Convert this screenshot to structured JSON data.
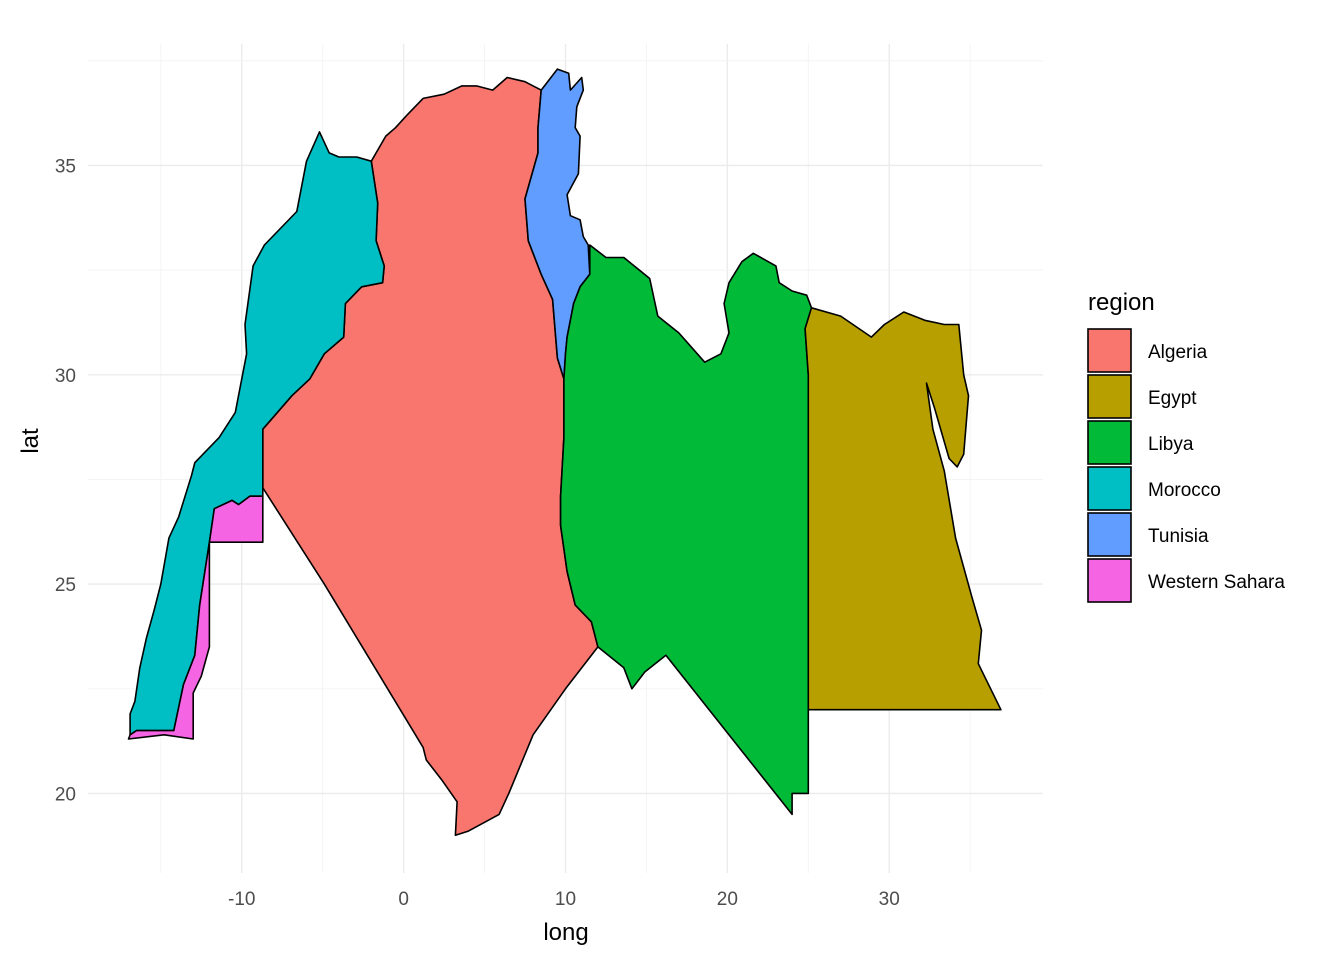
{
  "chart_data": {
    "type": "map",
    "xlabel": "long",
    "ylabel": "lat",
    "xlim": [
      -19.5,
      39.5
    ],
    "ylim": [
      18.1,
      37.9
    ],
    "x_ticks": [
      -10,
      0,
      10,
      20,
      30
    ],
    "y_ticks": [
      20,
      25,
      30,
      35
    ],
    "grid": true,
    "legend": {
      "title": "region",
      "position": "right"
    },
    "regions": [
      {
        "name": "Algeria",
        "color": "#F8766D",
        "polygon": [
          [
            -2.0,
            35.1
          ],
          [
            -1.1,
            35.7
          ],
          [
            -0.5,
            35.9
          ],
          [
            0.2,
            36.2
          ],
          [
            1.2,
            36.6
          ],
          [
            2.5,
            36.7
          ],
          [
            3.6,
            36.9
          ],
          [
            4.5,
            36.9
          ],
          [
            5.5,
            36.8
          ],
          [
            6.4,
            37.1
          ],
          [
            7.5,
            37.0
          ],
          [
            8.0,
            36.9
          ],
          [
            8.5,
            36.8
          ],
          [
            8.3,
            35.9
          ],
          [
            8.3,
            35.3
          ],
          [
            7.5,
            34.2
          ],
          [
            7.7,
            33.2
          ],
          [
            8.5,
            32.4
          ],
          [
            9.2,
            31.8
          ],
          [
            9.5,
            30.4
          ],
          [
            9.9,
            29.9
          ],
          [
            9.9,
            28.5
          ],
          [
            9.7,
            27.1
          ],
          [
            9.7,
            26.4
          ],
          [
            10.1,
            25.3
          ],
          [
            10.6,
            24.5
          ],
          [
            11.6,
            24.1
          ],
          [
            12.0,
            23.5
          ],
          [
            10.0,
            22.5
          ],
          [
            8.0,
            21.4
          ],
          [
            6.5,
            20.0
          ],
          [
            5.9,
            19.5
          ],
          [
            4.0,
            19.1
          ],
          [
            3.2,
            19.0
          ],
          [
            3.3,
            19.8
          ],
          [
            2.4,
            20.3
          ],
          [
            1.4,
            20.8
          ],
          [
            1.2,
            21.1
          ],
          [
            -4.9,
            25.0
          ],
          [
            -8.7,
            27.3
          ],
          [
            -8.7,
            27.6
          ],
          [
            -8.7,
            28.7
          ],
          [
            -6.9,
            29.5
          ],
          [
            -5.8,
            29.9
          ],
          [
            -4.9,
            30.5
          ],
          [
            -3.7,
            30.9
          ],
          [
            -3.6,
            31.7
          ],
          [
            -2.6,
            32.1
          ],
          [
            -1.3,
            32.2
          ],
          [
            -1.2,
            32.6
          ],
          [
            -1.7,
            33.2
          ],
          [
            -1.6,
            34.1
          ],
          [
            -1.8,
            34.6
          ],
          [
            -2.0,
            35.1
          ]
        ]
      },
      {
        "name": "Tunisia",
        "color": "#619CFF",
        "polygon": [
          [
            8.5,
            36.8
          ],
          [
            9.5,
            37.3
          ],
          [
            10.2,
            37.2
          ],
          [
            10.3,
            36.8
          ],
          [
            11.0,
            37.1
          ],
          [
            11.1,
            36.8
          ],
          [
            10.7,
            36.4
          ],
          [
            10.6,
            35.9
          ],
          [
            10.9,
            35.7
          ],
          [
            10.8,
            34.8
          ],
          [
            10.1,
            34.3
          ],
          [
            10.3,
            33.8
          ],
          [
            10.9,
            33.7
          ],
          [
            11.1,
            33.3
          ],
          [
            11.4,
            33.1
          ],
          [
            11.5,
            32.4
          ],
          [
            10.9,
            32.1
          ],
          [
            10.5,
            31.7
          ],
          [
            10.1,
            30.9
          ],
          [
            10.0,
            30.5
          ],
          [
            9.9,
            29.9
          ],
          [
            9.5,
            30.4
          ],
          [
            9.2,
            31.8
          ],
          [
            8.5,
            32.4
          ],
          [
            7.7,
            33.2
          ],
          [
            7.5,
            34.2
          ],
          [
            8.3,
            35.3
          ],
          [
            8.3,
            35.9
          ],
          [
            8.5,
            36.8
          ]
        ]
      },
      {
        "name": "Libya",
        "color": "#00BA38",
        "polygon": [
          [
            11.5,
            33.1
          ],
          [
            12.5,
            32.8
          ],
          [
            13.6,
            32.8
          ],
          [
            15.2,
            32.3
          ],
          [
            15.7,
            31.4
          ],
          [
            17.0,
            31.0
          ],
          [
            18.6,
            30.3
          ],
          [
            19.6,
            30.5
          ],
          [
            20.1,
            31.0
          ],
          [
            19.8,
            31.7
          ],
          [
            20.1,
            32.2
          ],
          [
            20.9,
            32.7
          ],
          [
            21.6,
            32.9
          ],
          [
            23.0,
            32.6
          ],
          [
            23.2,
            32.2
          ],
          [
            24.0,
            32.0
          ],
          [
            24.9,
            31.9
          ],
          [
            25.2,
            31.6
          ],
          [
            24.8,
            31.1
          ],
          [
            25.0,
            30.0
          ],
          [
            25.0,
            22.0
          ],
          [
            25.0,
            20.0
          ],
          [
            24.0,
            20.0
          ],
          [
            24.0,
            19.5
          ],
          [
            16.2,
            23.3
          ],
          [
            14.9,
            22.9
          ],
          [
            14.1,
            22.5
          ],
          [
            13.6,
            23.0
          ],
          [
            12.0,
            23.5
          ],
          [
            11.6,
            24.1
          ],
          [
            10.6,
            24.5
          ],
          [
            10.1,
            25.3
          ],
          [
            9.7,
            26.4
          ],
          [
            9.7,
            27.1
          ],
          [
            9.9,
            28.5
          ],
          [
            9.9,
            29.9
          ],
          [
            10.0,
            30.5
          ],
          [
            10.1,
            30.9
          ],
          [
            10.5,
            31.7
          ],
          [
            10.9,
            32.1
          ],
          [
            11.5,
            32.4
          ],
          [
            11.5,
            33.1
          ]
        ]
      },
      {
        "name": "Egypt",
        "color": "#B79F00",
        "polygon": [
          [
            25.2,
            31.6
          ],
          [
            27.0,
            31.4
          ],
          [
            28.9,
            30.9
          ],
          [
            29.7,
            31.2
          ],
          [
            30.9,
            31.5
          ],
          [
            32.2,
            31.3
          ],
          [
            33.4,
            31.2
          ],
          [
            34.3,
            31.2
          ],
          [
            34.6,
            30.0
          ],
          [
            34.9,
            29.5
          ],
          [
            34.6,
            28.1
          ],
          [
            34.2,
            27.8
          ],
          [
            33.7,
            28.0
          ],
          [
            32.8,
            29.2
          ],
          [
            32.3,
            29.8
          ],
          [
            32.7,
            28.7
          ],
          [
            33.4,
            27.7
          ],
          [
            34.1,
            26.1
          ],
          [
            35.1,
            24.7
          ],
          [
            35.7,
            23.9
          ],
          [
            35.5,
            23.1
          ],
          [
            36.9,
            22.0
          ],
          [
            31.4,
            22.0
          ],
          [
            29.1,
            22.0
          ],
          [
            25.0,
            22.0
          ],
          [
            25.0,
            30.0
          ],
          [
            24.8,
            31.1
          ],
          [
            25.2,
            31.6
          ]
        ]
      },
      {
        "name": "Morocco",
        "color": "#00BFC4",
        "polygon": [
          [
            -5.2,
            35.8
          ],
          [
            -6.0,
            35.1
          ],
          [
            -6.6,
            33.9
          ],
          [
            -8.6,
            33.1
          ],
          [
            -9.3,
            32.6
          ],
          [
            -9.8,
            31.2
          ],
          [
            -9.7,
            30.5
          ],
          [
            -10.4,
            29.1
          ],
          [
            -11.4,
            28.5
          ],
          [
            -12.9,
            27.9
          ],
          [
            -13.1,
            27.6
          ],
          [
            -13.9,
            26.6
          ],
          [
            -14.5,
            26.1
          ],
          [
            -15.0,
            25.0
          ],
          [
            -15.4,
            24.4
          ],
          [
            -15.9,
            23.7
          ],
          [
            -16.3,
            23.0
          ],
          [
            -16.6,
            22.2
          ],
          [
            -16.9,
            21.9
          ],
          [
            -16.9,
            21.4
          ],
          [
            -16.5,
            21.5
          ],
          [
            -15.9,
            21.5
          ],
          [
            -14.2,
            21.5
          ],
          [
            -13.6,
            22.6
          ],
          [
            -12.9,
            23.3
          ],
          [
            -12.6,
            24.5
          ],
          [
            -12.0,
            26.0
          ],
          [
            -11.7,
            26.8
          ],
          [
            -10.6,
            27.0
          ],
          [
            -10.2,
            26.9
          ],
          [
            -9.5,
            27.1
          ],
          [
            -8.7,
            27.1
          ],
          [
            -8.7,
            27.3
          ],
          [
            -8.7,
            27.6
          ],
          [
            -8.7,
            28.7
          ],
          [
            -6.9,
            29.5
          ],
          [
            -5.8,
            29.9
          ],
          [
            -4.9,
            30.5
          ],
          [
            -3.7,
            30.9
          ],
          [
            -3.6,
            31.7
          ],
          [
            -2.6,
            32.1
          ],
          [
            -1.3,
            32.2
          ],
          [
            -1.2,
            32.6
          ],
          [
            -1.7,
            33.2
          ],
          [
            -1.6,
            34.1
          ],
          [
            -1.8,
            34.6
          ],
          [
            -2.0,
            35.1
          ],
          [
            -2.9,
            35.2
          ],
          [
            -4.0,
            35.2
          ],
          [
            -4.6,
            35.3
          ],
          [
            -5.2,
            35.8
          ]
        ]
      },
      {
        "name": "Western Sahara",
        "color": "#F564E3",
        "polygon": [
          [
            -8.7,
            27.1
          ],
          [
            -9.5,
            27.1
          ],
          [
            -10.2,
            26.9
          ],
          [
            -10.6,
            27.0
          ],
          [
            -11.7,
            26.8
          ],
          [
            -12.0,
            26.0
          ],
          [
            -12.6,
            24.5
          ],
          [
            -12.9,
            23.3
          ],
          [
            -13.6,
            22.6
          ],
          [
            -14.2,
            21.5
          ],
          [
            -15.9,
            21.5
          ],
          [
            -16.5,
            21.5
          ],
          [
            -16.9,
            21.4
          ],
          [
            -17.0,
            21.3
          ],
          [
            -14.8,
            21.4
          ],
          [
            -13.0,
            21.3
          ],
          [
            -13.0,
            22.4
          ],
          [
            -12.5,
            22.8
          ],
          [
            -12.0,
            23.5
          ],
          [
            -12.0,
            26.0
          ],
          [
            -8.7,
            26.0
          ],
          [
            -8.7,
            27.1
          ]
        ]
      }
    ]
  }
}
